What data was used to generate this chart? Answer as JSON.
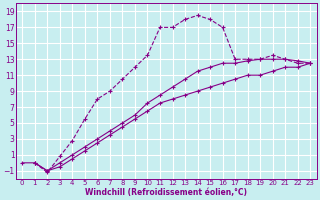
{
  "bg_color": "#c8eef0",
  "grid_color": "#b8dfe0",
  "line_color": "#880088",
  "xlabel": "Windchill (Refroidissement éolien,°C)",
  "xlim": [
    -0.5,
    23.5
  ],
  "ylim": [
    -2,
    20
  ],
  "xticks": [
    0,
    1,
    2,
    3,
    4,
    5,
    6,
    7,
    8,
    9,
    10,
    11,
    12,
    13,
    14,
    15,
    16,
    17,
    18,
    19,
    20,
    21,
    22,
    23
  ],
  "yticks": [
    -1,
    1,
    3,
    5,
    7,
    9,
    11,
    13,
    15,
    17,
    19
  ],
  "curve_peak": {
    "x": [
      1,
      2,
      3,
      4,
      5,
      6,
      7,
      8,
      9,
      10,
      11,
      12,
      13,
      14,
      15,
      16,
      17,
      18,
      19,
      20,
      21,
      22,
      23
    ],
    "y": [
      0,
      -1.2,
      0.8,
      2.8,
      5.5,
      8.0,
      9.0,
      10.5,
      12.0,
      13.5,
      17.0,
      17.0,
      18.0,
      18.5,
      18.0,
      17.0,
      13.0,
      13.0,
      13.0,
      13.5,
      13.0,
      12.5,
      12.5
    ],
    "linestyle": "--"
  },
  "curve_high": {
    "x": [
      1,
      2,
      3,
      4,
      5,
      6,
      7,
      8,
      9,
      10,
      11,
      12,
      13,
      14,
      15,
      16,
      17,
      18,
      19,
      20,
      21,
      22,
      23
    ],
    "y": [
      0,
      -1.0,
      0.0,
      1.0,
      2.0,
      3.0,
      4.0,
      5.0,
      6.0,
      7.5,
      8.5,
      9.5,
      10.5,
      11.5,
      12.0,
      12.5,
      12.5,
      12.8,
      13.0,
      13.0,
      13.0,
      12.8,
      12.5
    ],
    "linestyle": "-"
  },
  "curve_low": {
    "x": [
      0,
      1,
      2,
      3,
      4,
      5,
      6,
      7,
      8,
      9,
      10,
      11,
      12,
      13,
      14,
      15,
      16,
      17,
      18,
      19,
      20,
      21,
      22,
      23
    ],
    "y": [
      0,
      0,
      -1.0,
      -0.5,
      0.5,
      1.5,
      2.5,
      3.5,
      4.5,
      5.5,
      6.5,
      7.5,
      8.0,
      8.5,
      9.0,
      9.5,
      10.0,
      10.5,
      11.0,
      11.0,
      11.5,
      12.0,
      12.0,
      12.5
    ],
    "linestyle": "-"
  }
}
